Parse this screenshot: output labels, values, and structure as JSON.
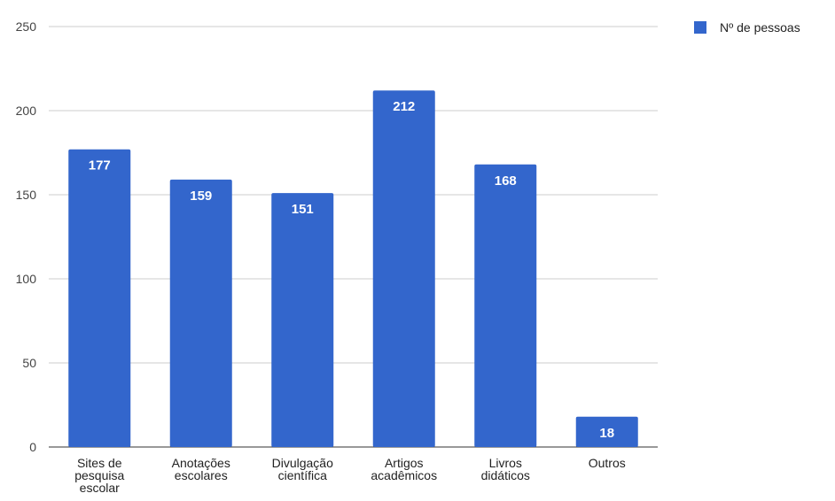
{
  "chart_data": {
    "type": "bar",
    "categories": [
      [
        "Sites de",
        "pesquisa",
        "escolar"
      ],
      [
        "Anotações",
        "escolares"
      ],
      [
        "Divulgação",
        "científica"
      ],
      [
        "Artigos",
        "acadêmicos"
      ],
      [
        "Livros",
        "didáticos"
      ],
      [
        "Outros"
      ]
    ],
    "series": [
      {
        "name": "Nº de pessoas",
        "values": [
          177,
          159,
          151,
          212,
          168,
          18
        ],
        "color": "#3366cc"
      }
    ],
    "ylim": [
      0,
      250
    ],
    "yticks": [
      0,
      50,
      100,
      150,
      200,
      250
    ],
    "grid": true,
    "legend": "top-right",
    "data_labels": true
  }
}
